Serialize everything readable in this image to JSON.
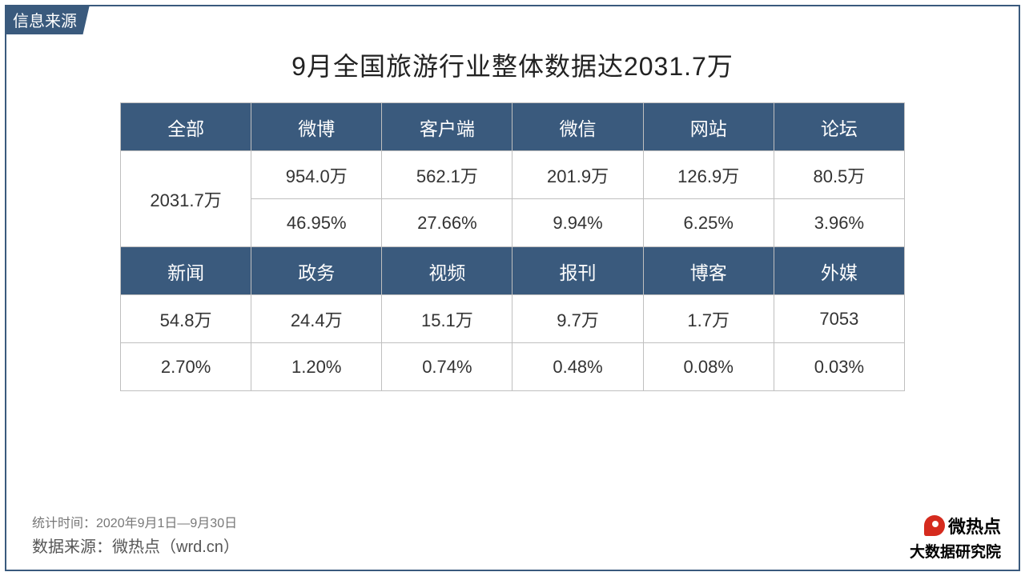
{
  "tag_label": "信息来源",
  "title": "9月全国旅游行业整体数据达2031.7万",
  "table": {
    "header_bg": "#3a5a7d",
    "header_fg": "#ffffff",
    "cell_border": "#bfbfbf",
    "row1_headers": [
      "全部",
      "微博",
      "客户端",
      "微信",
      "网站",
      "论坛"
    ],
    "row1_total": "2031.7万",
    "row1_values": [
      "954.0万",
      "562.1万",
      "201.9万",
      "126.9万",
      "80.5万"
    ],
    "row1_pct": [
      "46.95%",
      "27.66%",
      "9.94%",
      "6.25%",
      "3.96%"
    ],
    "row2_headers": [
      "新闻",
      "政务",
      "视频",
      "报刊",
      "博客",
      "外媒"
    ],
    "row2_values": [
      "54.8万",
      "24.4万",
      "15.1万",
      "9.7万",
      "1.7万",
      "7053"
    ],
    "row2_pct": [
      "2.70%",
      "1.20%",
      "0.74%",
      "0.48%",
      "0.08%",
      "0.03%"
    ]
  },
  "footer": {
    "stat_period": "统计时间：2020年9月1日—9月30日",
    "source": "数据来源：微热点（wrd.cn）"
  },
  "logo": {
    "line1": "微热点",
    "line2": "大数据研究院"
  }
}
